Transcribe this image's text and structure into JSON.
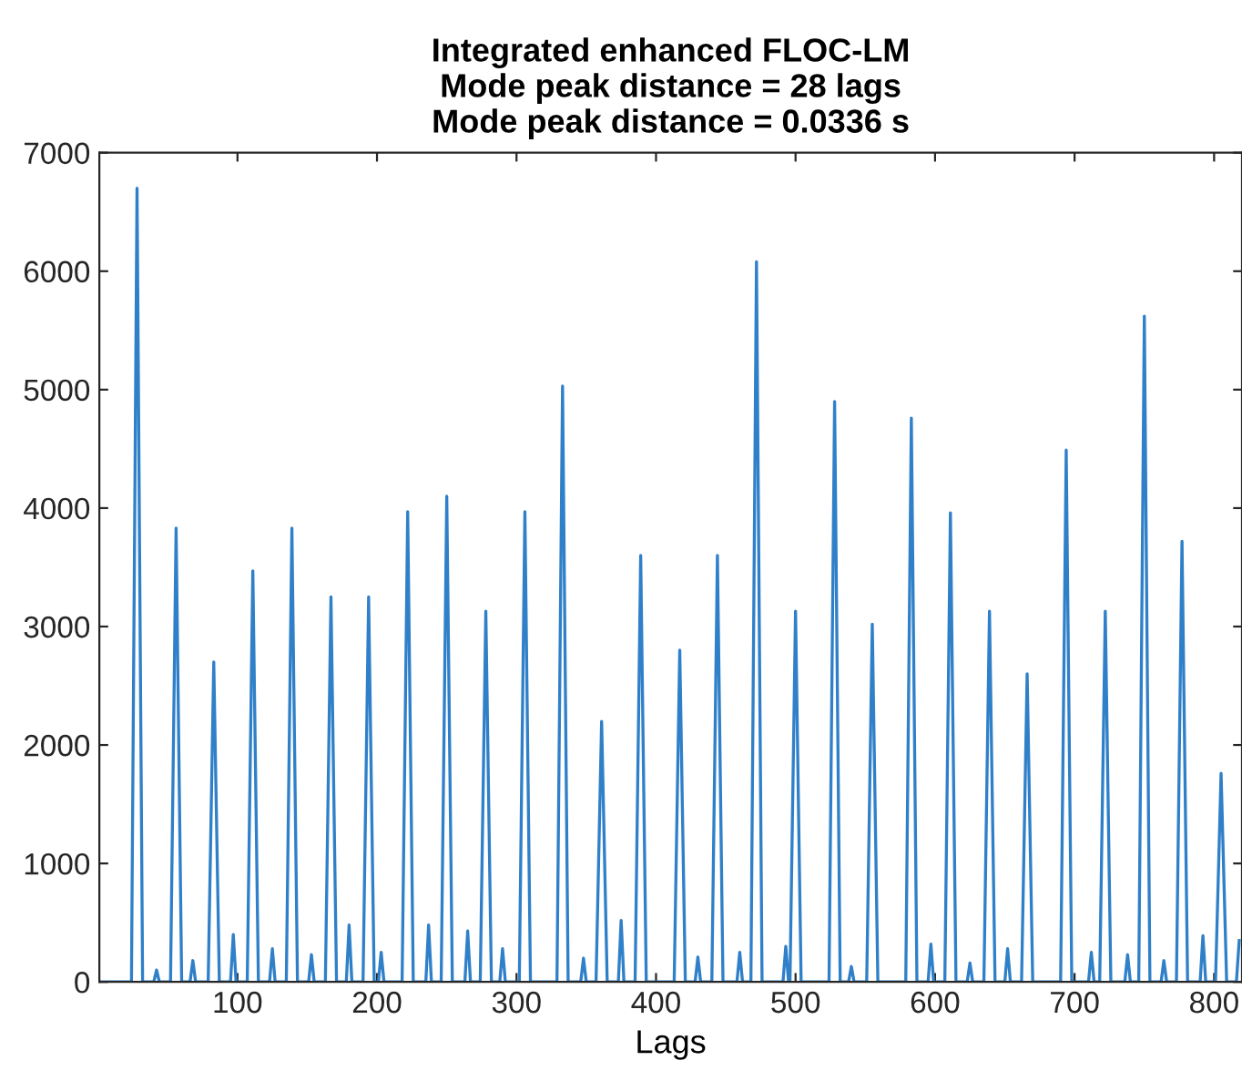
{
  "chart_data": {
    "type": "line",
    "title": "Integrated enhanced FLOC-LM\nMode peak distance = 28 lags\nMode peak distance = 0.0336 s",
    "xlabel": "Lags",
    "x": [
      1,
      24,
      28,
      32,
      40,
      42,
      44,
      52,
      56,
      60,
      66,
      68,
      70,
      79,
      83,
      87,
      95,
      97,
      99,
      107,
      111,
      115,
      123,
      125,
      127,
      135,
      139,
      143,
      151,
      153,
      155,
      163,
      167,
      171,
      178,
      180,
      182,
      190,
      194,
      198,
      201,
      203,
      205,
      218,
      222,
      226,
      235,
      237,
      239,
      246,
      250,
      254,
      263,
      265,
      267,
      274,
      278,
      282,
      288,
      290,
      292,
      302,
      306,
      310,
      329,
      333,
      337,
      346,
      348,
      350,
      357,
      361,
      365,
      373,
      375,
      377,
      385,
      389,
      393,
      413,
      417,
      421,
      428,
      430,
      432,
      440,
      444,
      448,
      458,
      460,
      462,
      468,
      472,
      476,
      491,
      493,
      495,
      496,
      500,
      504,
      524,
      528,
      532,
      538,
      540,
      542,
      551,
      555,
      559,
      579,
      583,
      587,
      595,
      597,
      599,
      607,
      611,
      615,
      623,
      625,
      627,
      635,
      639,
      643,
      650,
      652,
      654,
      662,
      666,
      670,
      690,
      694,
      698,
      710,
      712,
      714,
      718,
      722,
      726,
      736,
      738,
      740,
      746,
      750,
      754,
      762,
      764,
      766,
      773,
      777,
      781,
      790,
      792,
      794,
      801,
      805,
      809,
      816,
      818
    ],
    "series": [
      {
        "color": "#2f80c8",
        "values": [
          0,
          0,
          6700,
          0,
          0,
          100,
          0,
          0,
          3830,
          0,
          0,
          180,
          0,
          0,
          2700,
          0,
          0,
          400,
          0,
          0,
          3470,
          0,
          0,
          280,
          0,
          0,
          3830,
          0,
          0,
          230,
          0,
          0,
          3250,
          0,
          0,
          480,
          0,
          0,
          3250,
          0,
          0,
          250,
          0,
          0,
          3970,
          0,
          0,
          480,
          0,
          0,
          4100,
          0,
          0,
          430,
          0,
          0,
          3130,
          0,
          0,
          280,
          0,
          0,
          3970,
          0,
          0,
          5030,
          0,
          0,
          200,
          0,
          0,
          2200,
          0,
          0,
          520,
          0,
          0,
          3600,
          0,
          0,
          2800,
          0,
          0,
          210,
          0,
          0,
          3600,
          0,
          0,
          250,
          0,
          0,
          6080,
          0,
          0,
          300,
          0,
          0,
          3130,
          0,
          0,
          4900,
          0,
          0,
          130,
          0,
          0,
          3020,
          0,
          0,
          4760,
          0,
          0,
          320,
          0,
          0,
          3960,
          0,
          0,
          160,
          0,
          0,
          3130,
          0,
          0,
          280,
          0,
          0,
          2600,
          0,
          0,
          4490,
          0,
          0,
          250,
          0,
          0,
          3130,
          0,
          0,
          230,
          0,
          0,
          5620,
          0,
          0,
          180,
          0,
          0,
          3720,
          0,
          0,
          390,
          0,
          0,
          1760,
          0,
          0,
          350
        ]
      }
    ],
    "xlim": [
      1,
      820
    ],
    "ylim": [
      0,
      7000
    ],
    "xticks": [
      100,
      200,
      300,
      400,
      500,
      600,
      700,
      800
    ],
    "yticks": [
      0,
      1000,
      2000,
      3000,
      4000,
      5000,
      6000,
      7000
    ],
    "grid": false,
    "legend": false
  }
}
